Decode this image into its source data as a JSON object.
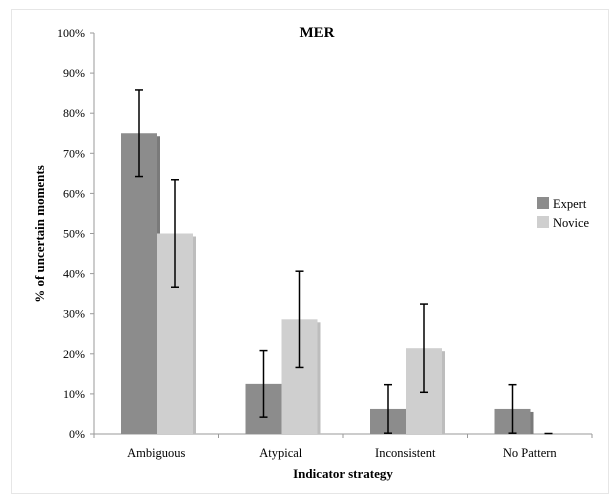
{
  "chart_data": {
    "type": "bar",
    "title": "MER",
    "xlabel": "Indicator strategy",
    "ylabel": "% of uncertain moments",
    "ylim": [
      0,
      100
    ],
    "yticks": [
      "0%",
      "10%",
      "20%",
      "30%",
      "40%",
      "50%",
      "60%",
      "70%",
      "80%",
      "90%",
      "100%"
    ],
    "categories": [
      "Ambiguous",
      "Atypical",
      "Inconsistent",
      "No Pattern"
    ],
    "series": [
      {
        "name": "Expert",
        "color": "#8c8c8c",
        "shadow": "#7a7a7a",
        "values": [
          75,
          12.5,
          6.25,
          6.25
        ],
        "error_low": [
          64.2,
          4.2,
          0.2,
          0.2
        ],
        "error_high": [
          85.8,
          20.8,
          12.3,
          12.3
        ]
      },
      {
        "name": "Novice",
        "color": "#cfcfcf",
        "shadow": "#bdbdbd",
        "values": [
          50,
          28.6,
          21.4,
          0
        ],
        "error_low": [
          36.6,
          16.6,
          10.4,
          0
        ],
        "error_high": [
          63.4,
          40.6,
          32.4,
          0
        ]
      }
    ],
    "legend_position": "right",
    "grid": false
  }
}
